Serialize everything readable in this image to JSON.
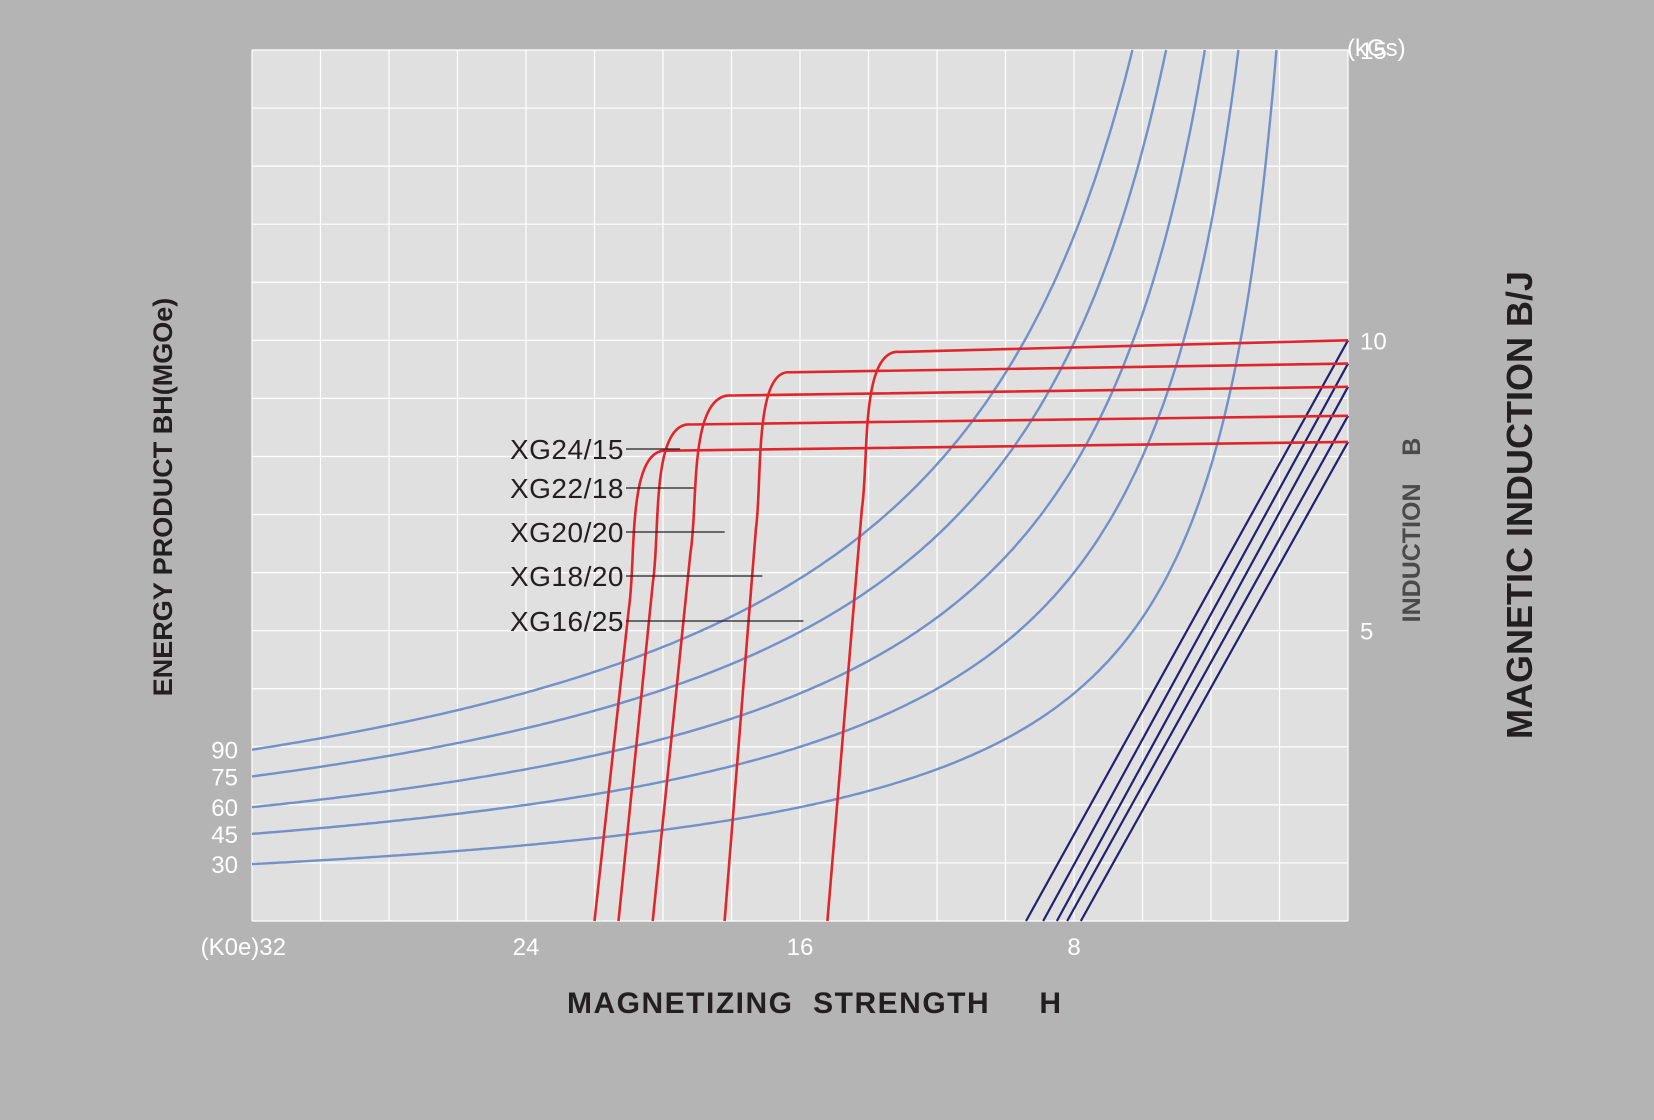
{
  "chart_data": {
    "type": "line",
    "title": "",
    "xlabel": "MAGNETIZING  STRENGTH     H",
    "ylabel_left": "ENERGY PRODUCT BH(MGOe)",
    "ylabel_right": "MAGNETIC INDUCTION B/J",
    "ylabel_right_inner": "INDUCTION    B",
    "x_unit": "(K0e)",
    "y_unit": "(kGs)",
    "x_axis": {
      "reversed": true,
      "range": [
        32,
        0
      ],
      "ticks": [
        {
          "value": 32,
          "label": "(K0e)32"
        },
        {
          "value": 24,
          "label": "24"
        },
        {
          "value": 16,
          "label": "16"
        },
        {
          "value": 8,
          "label": "8"
        }
      ]
    },
    "y_axis_right": {
      "range": [
        0,
        15
      ],
      "ticks": [
        {
          "value": 15,
          "label": "15"
        },
        {
          "value": 10,
          "label": "10"
        },
        {
          "value": 5,
          "label": "5"
        }
      ]
    },
    "energy_product_labels": [
      {
        "value": 90,
        "label": "90",
        "b_at_left_edge": 2.95
      },
      {
        "value": 75,
        "label": "75",
        "b_at_left_edge": 2.49
      },
      {
        "value": 60,
        "label": "60",
        "b_at_left_edge": 1.96
      },
      {
        "value": 45,
        "label": "45",
        "b_at_left_edge": 1.5
      },
      {
        "value": 30,
        "label": "30",
        "b_at_left_edge": 0.98
      }
    ],
    "grid": true,
    "colors": {
      "background": "#b4b4b4",
      "plot": "#dfe0df",
      "grid": "#ffffff",
      "energy": "#7390c8",
      "demag": "#e0262d",
      "intrinsic": "#23206f",
      "text_dark": "#231f20",
      "text_light": "#ffffff"
    },
    "series": [
      {
        "name": "XG24/15",
        "br": 10.0,
        "hcj": 15.2,
        "knee_h": 13.1,
        "knee_b": 9.8,
        "label_target_h": 19.5,
        "label_target_b": 7.87
      },
      {
        "name": "XG22/18",
        "br": 9.6,
        "hcj": 18.2,
        "knee_h": 16.3,
        "knee_b": 9.45,
        "label_target_h": 19.1,
        "label_target_b": 7.2
      },
      {
        "name": "XG20/20",
        "br": 9.2,
        "hcj": 20.3,
        "knee_h": 18.0,
        "knee_b": 9.05,
        "label_target_h": 18.2,
        "label_target_b": 6.45
      },
      {
        "name": "XG18/20",
        "br": 8.7,
        "hcj": 21.3,
        "knee_h": 19.2,
        "knee_b": 8.55,
        "label_target_h": 17.1,
        "label_target_b": 5.7
      },
      {
        "name": "XG16/25",
        "br": 8.25,
        "hcj": 22.0,
        "knee_h": 19.9,
        "knee_b": 8.1,
        "label_target_h": 15.9,
        "label_target_b": 4.95
      }
    ],
    "energy_curves": [
      {
        "value": 90,
        "b_at_left_edge": 2.95
      },
      {
        "value": 75,
        "b_at_left_edge": 2.49
      },
      {
        "value": 60,
        "b_at_left_edge": 1.96
      },
      {
        "value": 45,
        "b_at_left_edge": 1.5
      },
      {
        "value": 30,
        "b_at_left_edge": 0.98
      }
    ],
    "intrinsic_lines": [
      {
        "h_start": 9.4,
        "b_end": 10.0
      },
      {
        "h_start": 8.9,
        "b_end": 9.6
      },
      {
        "h_start": 8.5,
        "b_end": 9.2
      },
      {
        "h_start": 8.2,
        "b_end": 8.7
      },
      {
        "h_start": 7.8,
        "b_end": 8.25
      }
    ]
  }
}
